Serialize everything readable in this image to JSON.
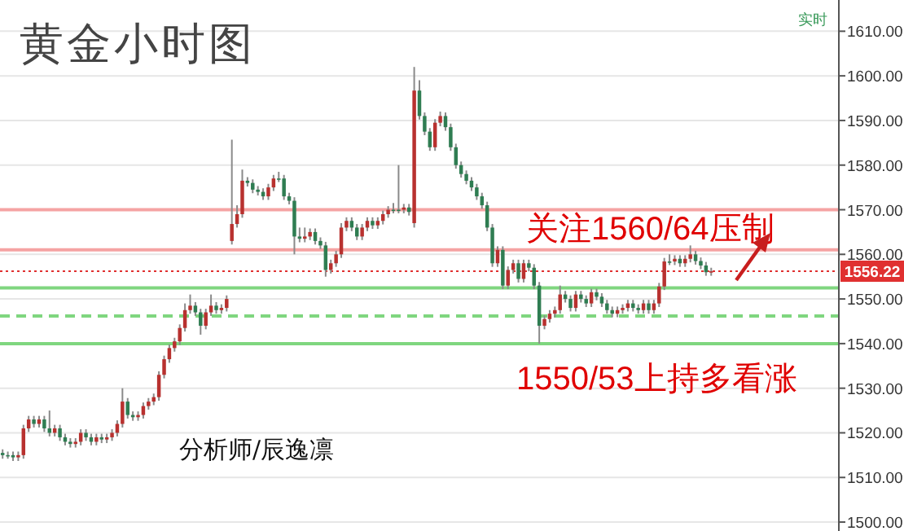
{
  "chart_data": {
    "type": "candlestick",
    "title": "黄金小时图",
    "annotations": [
      "关注1560/64压制",
      "1550/53上持多看涨",
      "分析师/辰逸凛",
      "实时"
    ],
    "categories": [
      null,
      null,
      null,
      null,
      null,
      null,
      null,
      null,
      null,
      null,
      null,
      null,
      null,
      null,
      null,
      null,
      null,
      null,
      null,
      null,
      null,
      null,
      null,
      null,
      null,
      null,
      null,
      null,
      null,
      null,
      null,
      null,
      null,
      null,
      null,
      null,
      null,
      null,
      null,
      null,
      null,
      null,
      null,
      null,
      null,
      null,
      null,
      null,
      null,
      null,
      null,
      null,
      null,
      null,
      null,
      null,
      null,
      null,
      null,
      null,
      null,
      null,
      null,
      null,
      null,
      null,
      null,
      null,
      null,
      null,
      null,
      null,
      null,
      null,
      null,
      null,
      null,
      null,
      null,
      null,
      null,
      null,
      null,
      null,
      null,
      null,
      null,
      null,
      null,
      null,
      null,
      null,
      null,
      null,
      null,
      null,
      null,
      null,
      null,
      null,
      null,
      null,
      null,
      null,
      null,
      null,
      null,
      null,
      null,
      null,
      null,
      null,
      null,
      null,
      null,
      null,
      null,
      null,
      null,
      null,
      null,
      null,
      null,
      null,
      null,
      null,
      null,
      null,
      null,
      null,
      null,
      null,
      null,
      null,
      null,
      null,
      null,
      null,
      null,
      null,
      null,
      null,
      null,
      null,
      null,
      null,
      null,
      null,
      null,
      null,
      null,
      null,
      null,
      null,
      null,
      null,
      null,
      null,
      null,
      null,
      null
    ],
    "ohlc": [
      [
        1515.5,
        1516.3,
        1514.2,
        1515
      ],
      [
        1515,
        1515.8,
        1514.2,
        1515
      ],
      [
        1515,
        1515.8,
        1513.7,
        1514.5
      ],
      [
        1514.5,
        1515.8,
        1513.7,
        1515
      ],
      [
        1515,
        1521.8,
        1514.2,
        1521
      ],
      [
        1521,
        1523.8,
        1520.2,
        1523
      ],
      [
        1523,
        1523.8,
        1521.2,
        1522
      ],
      [
        1522,
        1523.8,
        1521.2,
        1523
      ],
      [
        1523,
        1523.8,
        1520.2,
        1521
      ],
      [
        1521,
        1525,
        1519.2,
        1520
      ],
      [
        1520,
        1521.8,
        1519.2,
        1521
      ],
      [
        1521,
        1521.8,
        1518.2,
        1519
      ],
      [
        1519,
        1519.8,
        1517.2,
        1518
      ],
      [
        1518,
        1518.8,
        1516.7,
        1517.5
      ],
      [
        1517.5,
        1518.8,
        1516.7,
        1518
      ],
      [
        1518,
        1520.8,
        1517.2,
        1520
      ],
      [
        1520,
        1520.8,
        1518.2,
        1519
      ],
      [
        1519,
        1519.8,
        1517.2,
        1518
      ],
      [
        1518,
        1519.8,
        1517.2,
        1519
      ],
      [
        1519,
        1519.8,
        1517.7,
        1518.5
      ],
      [
        1518.5,
        1519.8,
        1517.7,
        1519
      ],
      [
        1519,
        1520.8,
        1518.2,
        1520
      ],
      [
        1520,
        1522.8,
        1519.2,
        1522
      ],
      [
        1522,
        1530,
        1521.2,
        1527
      ],
      [
        1527,
        1527.8,
        1523.2,
        1524
      ],
      [
        1524,
        1524.8,
        1522.7,
        1523.5
      ],
      [
        1523.5,
        1524.8,
        1522.7,
        1524
      ],
      [
        1524,
        1526.8,
        1523.2,
        1526
      ],
      [
        1526,
        1527.8,
        1525.2,
        1527
      ],
      [
        1527,
        1528.8,
        1526.2,
        1528
      ],
      [
        1528,
        1533.8,
        1527.2,
        1533
      ],
      [
        1533,
        1537.3,
        1532.2,
        1536.5
      ],
      [
        1536.5,
        1539.8,
        1535.7,
        1539
      ],
      [
        1539,
        1541.3,
        1538.2,
        1540.5
      ],
      [
        1540.5,
        1544.3,
        1539.7,
        1543.5
      ],
      [
        1543.5,
        1549,
        1542.7,
        1547.5
      ],
      [
        1547.5,
        1551,
        1546.7,
        1548.5
      ],
      [
        1548.5,
        1549.3,
        1546.2,
        1547
      ],
      [
        1547,
        1547.8,
        1542,
        1544
      ],
      [
        1544,
        1547.8,
        1543.2,
        1547
      ],
      [
        1547,
        1551,
        1546.2,
        1548.5
      ],
      [
        1548.5,
        1549.3,
        1546.7,
        1547.5
      ],
      [
        1547.5,
        1548.8,
        1546.7,
        1548
      ],
      [
        1548,
        1550.8,
        1547.2,
        1550
      ],
      [
        1563,
        1585.7,
        1562.2,
        1566.8
      ],
      [
        1566.8,
        1571,
        1566,
        1569
      ],
      [
        1569,
        1579,
        1568.2,
        1576.5
      ],
      [
        1576.5,
        1577.3,
        1575.2,
        1576
      ],
      [
        1576,
        1576.8,
        1573.7,
        1574.5
      ],
      [
        1574.5,
        1575.3,
        1573.2,
        1574
      ],
      [
        1574,
        1574.8,
        1572.2,
        1573
      ],
      [
        1573,
        1575.8,
        1572.2,
        1575
      ],
      [
        1575,
        1577.8,
        1574.2,
        1577
      ],
      [
        1577,
        1578.5,
        1576.2,
        1577
      ],
      [
        1577,
        1577.8,
        1572.2,
        1573
      ],
      [
        1573,
        1573.8,
        1571.2,
        1572
      ],
      [
        1572,
        1572.8,
        1560,
        1564
      ],
      [
        1564,
        1566,
        1562.7,
        1563.5
      ],
      [
        1563.5,
        1566,
        1562.7,
        1564
      ],
      [
        1564,
        1565.8,
        1563.2,
        1565
      ],
      [
        1565,
        1565.8,
        1562.2,
        1563
      ],
      [
        1563,
        1563.8,
        1561.2,
        1562
      ],
      [
        1562,
        1562.8,
        1555,
        1556.5
      ],
      [
        1556.5,
        1558.8,
        1555.7,
        1558
      ],
      [
        1558,
        1560.8,
        1557.2,
        1560
      ],
      [
        1560,
        1567,
        1559.2,
        1566
      ],
      [
        1566,
        1568.3,
        1565.2,
        1567.5
      ],
      [
        1567.5,
        1568.3,
        1565.2,
        1566
      ],
      [
        1566,
        1566.8,
        1563.2,
        1564
      ],
      [
        1564,
        1566.8,
        1563.2,
        1566
      ],
      [
        1566,
        1568.3,
        1565.2,
        1567.5
      ],
      [
        1567.5,
        1568.3,
        1565.7,
        1566.5
      ],
      [
        1566.5,
        1568.3,
        1565.7,
        1567.5
      ],
      [
        1567.5,
        1569.8,
        1566.7,
        1569
      ],
      [
        1569,
        1570.8,
        1568.2,
        1570
      ],
      [
        1570,
        1571.5,
        1569.2,
        1570
      ],
      [
        1570,
        1580,
        1569.2,
        1570
      ],
      [
        1570,
        1571.3,
        1569.2,
        1570.5
      ],
      [
        1570.5,
        1571.3,
        1568.7,
        1569.5
      ],
      [
        1567,
        1602,
        1566,
        1596.7
      ],
      [
        1596.7,
        1599,
        1590.2,
        1591
      ],
      [
        1591,
        1591.8,
        1586.7,
        1587.5
      ],
      [
        1587.5,
        1588.3,
        1583.2,
        1584
      ],
      [
        1584,
        1590.3,
        1583.2,
        1589.5
      ],
      [
        1589.5,
        1592,
        1588.7,
        1591
      ],
      [
        1591,
        1591.8,
        1587.7,
        1588.5
      ],
      [
        1588.5,
        1589.3,
        1583.2,
        1584
      ],
      [
        1584,
        1584.8,
        1579.2,
        1580
      ],
      [
        1580,
        1580.8,
        1577.2,
        1578
      ],
      [
        1578,
        1578.8,
        1575.7,
        1576.5
      ],
      [
        1576.5,
        1577.3,
        1574.2,
        1575
      ],
      [
        1575,
        1575.8,
        1572.2,
        1573
      ],
      [
        1573,
        1573.8,
        1570.2,
        1571
      ],
      [
        1571,
        1571.8,
        1565.2,
        1566
      ],
      [
        1566,
        1566.8,
        1557.2,
        1558
      ],
      [
        1558,
        1561.8,
        1557.2,
        1561
      ],
      [
        1561,
        1561.8,
        1552.2,
        1553
      ],
      [
        1553,
        1557.3,
        1552.2,
        1556.5
      ],
      [
        1556.5,
        1558.8,
        1555.7,
        1558
      ],
      [
        1558,
        1558.8,
        1553.7,
        1554.5
      ],
      [
        1554.5,
        1558.8,
        1553.7,
        1558
      ],
      [
        1558,
        1558.8,
        1556.2,
        1557
      ],
      [
        1557,
        1557.8,
        1552.2,
        1553
      ],
      [
        1553,
        1553.8,
        1540,
        1544
      ],
      [
        1544,
        1546.3,
        1543.2,
        1545.5
      ],
      [
        1545.5,
        1547.5,
        1544.7,
        1546.7
      ],
      [
        1546.7,
        1548.3,
        1545.9,
        1547.5
      ],
      [
        1547.5,
        1553,
        1546.7,
        1551
      ],
      [
        1551,
        1551.8,
        1549.2,
        1550
      ],
      [
        1550,
        1550.8,
        1547.2,
        1548
      ],
      [
        1548,
        1551.8,
        1547.2,
        1551
      ],
      [
        1551,
        1551.8,
        1549.2,
        1550
      ],
      [
        1550,
        1550.8,
        1548.2,
        1549
      ],
      [
        1549,
        1552.3,
        1548.2,
        1551.5
      ],
      [
        1551.5,
        1552.3,
        1549.7,
        1550.5
      ],
      [
        1550.5,
        1551.3,
        1548.2,
        1549
      ],
      [
        1549,
        1549.8,
        1546.7,
        1547.5
      ],
      [
        1547.5,
        1548.3,
        1545.9,
        1546.7
      ],
      [
        1546.7,
        1548.3,
        1545.9,
        1547.5
      ],
      [
        1547.5,
        1548.8,
        1546.7,
        1548
      ],
      [
        1548,
        1549.8,
        1547.2,
        1549
      ],
      [
        1549,
        1549.8,
        1547.2,
        1548
      ],
      [
        1548,
        1548.8,
        1546.7,
        1547.5
      ],
      [
        1547.5,
        1549.8,
        1546.7,
        1549
      ],
      [
        1549,
        1549.8,
        1546.7,
        1547.5
      ],
      [
        1547.5,
        1549.8,
        1546.7,
        1549
      ],
      [
        1549,
        1553.6,
        1548.2,
        1552.8
      ],
      [
        1552.8,
        1559.2,
        1552,
        1558.4
      ],
      [
        1558.4,
        1560,
        1557.6,
        1558.4
      ],
      [
        1558.4,
        1559.8,
        1557.6,
        1559
      ],
      [
        1559,
        1559.8,
        1557.2,
        1558
      ],
      [
        1558,
        1559.8,
        1557.2,
        1559
      ],
      [
        1559,
        1562,
        1558.2,
        1560
      ],
      [
        1560,
        1560.8,
        1557.7,
        1558.5
      ],
      [
        1558.5,
        1559.3,
        1556.7,
        1557.5
      ],
      [
        1557.5,
        1558.3,
        1555.2,
        1556
      ],
      [
        1556,
        1557,
        1555.2,
        1556.2
      ],
      null,
      null,
      null,
      null,
      null,
      null,
      null,
      null,
      null,
      null,
      null,
      null,
      null,
      null,
      null,
      null,
      null,
      null,
      null,
      null,
      null,
      null,
      null,
      null
    ],
    "colors": [
      "#2f7d52",
      "#2f7d52",
      "#2f7d52",
      "#b8312f",
      "#b8312f",
      "#b8312f",
      "#2f7d52",
      "#b8312f",
      "#2f7d52",
      "#2f7d52",
      "#b8312f",
      "#2f7d52",
      "#2f7d52",
      "#2f7d52",
      "#b8312f",
      "#b8312f",
      "#2f7d52",
      "#2f7d52",
      "#b8312f",
      "#2f7d52",
      "#b8312f",
      "#b8312f",
      "#b8312f",
      "#b8312f",
      "#2f7d52",
      "#2f7d52",
      "#b8312f",
      "#b8312f",
      "#b8312f",
      "#b8312f",
      "#b8312f",
      "#b8312f",
      "#b8312f",
      "#b8312f",
      "#b8312f",
      "#b8312f",
      "#b8312f",
      "#2f7d52",
      "#2f7d52",
      "#b8312f",
      "#b8312f",
      "#2f7d52",
      "#b8312f",
      "#b8312f",
      "#b8312f",
      "#b8312f",
      "#b8312f",
      "#2f7d52",
      "#2f7d52",
      "#2f7d52",
      "#2f7d52",
      "#b8312f",
      "#b8312f",
      "#2f7d52",
      "#2f7d52",
      "#2f7d52",
      "#2f7d52",
      "#2f7d52",
      "#b8312f",
      "#b8312f",
      "#2f7d52",
      "#2f7d52",
      "#2f7d52",
      "#b8312f",
      "#b8312f",
      "#b8312f",
      "#b8312f",
      "#2f7d52",
      "#2f7d52",
      "#b8312f",
      "#b8312f",
      "#2f7d52",
      "#b8312f",
      "#b8312f",
      "#b8312f",
      "#2f7d52",
      "#2f7d52",
      "#b8312f",
      "#2f7d52",
      "#b8312f",
      "#2f7d52",
      "#2f7d52",
      "#2f7d52",
      "#b8312f",
      "#b8312f",
      "#2f7d52",
      "#2f7d52",
      "#2f7d52",
      "#2f7d52",
      "#2f7d52",
      "#2f7d52",
      "#2f7d52",
      "#2f7d52",
      "#2f7d52",
      "#2f7d52",
      "#b8312f",
      "#2f7d52",
      "#b8312f",
      "#b8312f",
      "#2f7d52",
      "#b8312f",
      "#2f7d52",
      "#2f7d52",
      "#2f7d52",
      "#b8312f",
      "#b8312f",
      "#b8312f",
      "#b8312f",
      "#2f7d52",
      "#2f7d52",
      "#b8312f",
      "#2f7d52",
      "#2f7d52",
      "#b8312f",
      "#2f7d52",
      "#2f7d52",
      "#2f7d52",
      "#2f7d52",
      "#b8312f",
      "#b8312f",
      "#b8312f",
      "#2f7d52",
      "#2f7d52",
      "#b8312f",
      "#2f7d52",
      "#b8312f",
      "#b8312f",
      "#b8312f",
      "#2f7d52",
      "#b8312f",
      "#2f7d52",
      "#b8312f",
      "#b8312f",
      "#2f7d52",
      "#2f7d52",
      "#2f7d52",
      "#b8312f",
      null,
      null,
      null,
      null,
      null,
      null,
      null,
      null,
      null,
      null,
      null,
      null,
      null,
      null,
      null,
      null,
      null,
      null,
      null,
      null,
      null,
      null,
      null,
      null
    ],
    "ylim": [
      1498,
      1617
    ],
    "yticks": [
      {
        "value": 1500,
        "label": "1500.00"
      },
      {
        "value": 1510,
        "label": "1510.00"
      },
      {
        "value": 1520,
        "label": "1520.00"
      },
      {
        "value": 1530,
        "label": "1530.00"
      },
      {
        "value": 1540,
        "label": "1540.00"
      },
      {
        "value": 1550,
        "label": "1550.00"
      },
      {
        "value": 1560,
        "label": "1560.00"
      },
      {
        "value": 1570,
        "label": "1570.00"
      },
      {
        "value": 1580,
        "label": "1580.00"
      },
      {
        "value": 1590,
        "label": "1590.00"
      },
      {
        "value": 1600,
        "label": "1600.00"
      },
      {
        "value": 1610,
        "label": "1610.00"
      }
    ],
    "ref_lines": [
      {
        "axis": "y",
        "value": 1570,
        "color": "#f5a3a3",
        "line_style": "solid"
      },
      {
        "axis": "y",
        "value": 1561,
        "color": "#f5a3a3",
        "line_style": "solid"
      },
      {
        "axis": "y",
        "value": 1552.5,
        "color": "#7fd67f",
        "line_style": "solid"
      },
      {
        "axis": "y",
        "value": 1546.2,
        "color": "#7fd67f",
        "line_style": "dashed"
      },
      {
        "axis": "y",
        "value": 1540,
        "color": "#7fd67f",
        "line_style": "solid"
      },
      {
        "axis": "y",
        "value": 1556.22,
        "label": "1556.22",
        "color": "#e03030",
        "line_style": "dotted"
      }
    ],
    "grid": "y",
    "tick_labels": "y"
  }
}
